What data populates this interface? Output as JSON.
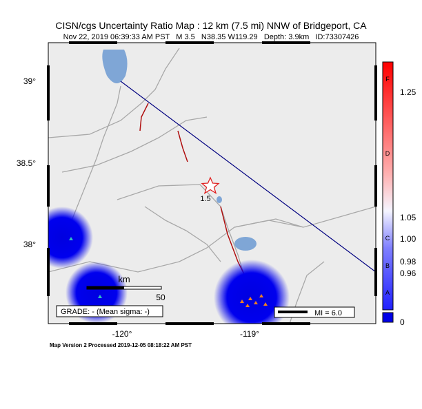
{
  "header": {
    "title": "CISN/cgs Uncertainty Ratio Map : 12 km (7.5 mi) NNW of Bridgeport, CA",
    "subtitle": "Nov 22, 2019 06:39:33 AM PST   M 3.5   N38.35 W119.29   Depth: 3.9km   ID:73307426"
  },
  "map": {
    "lat_labels": [
      "39°",
      "38.5°",
      "38°"
    ],
    "lon_labels": [
      "-120°",
      "-119°"
    ],
    "epicenter_label": "1.5",
    "scale_unit": "km",
    "scale_length": "50",
    "grade": "GRADE: - (Mean sigma: -)",
    "intensity_key": "MI = 6.0"
  },
  "colorbar": {
    "letters": [
      "F",
      "D",
      "C",
      "B",
      "A"
    ],
    "ticks": [
      "1.25",
      "1.05",
      "1.00",
      "0.98",
      "0.96",
      "0"
    ]
  },
  "footer": {
    "text": "Map Version 2 Processed 2019-12-05 08:18:22 AM PST"
  }
}
